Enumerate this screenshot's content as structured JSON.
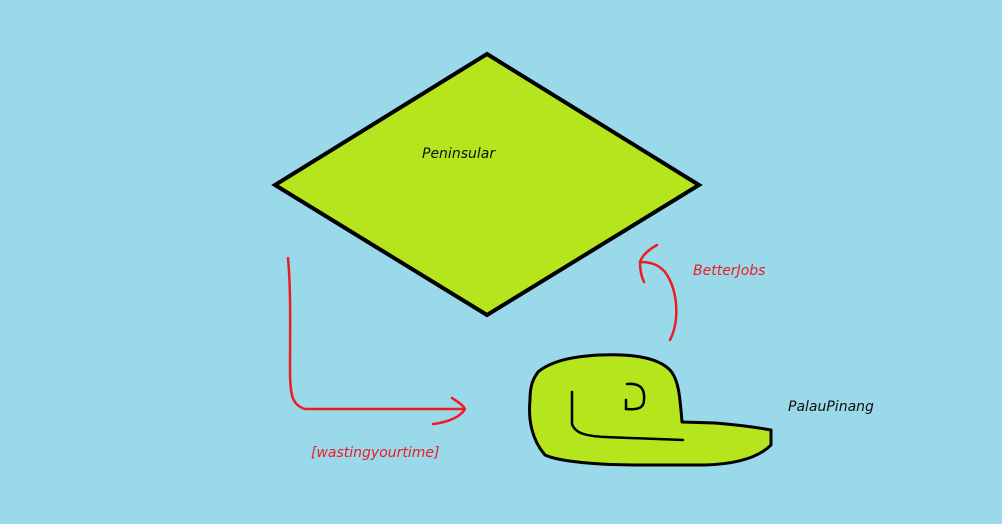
{
  "diagram": {
    "regions": {
      "peninsular": {
        "label": "Peninsular"
      },
      "pulau_pinang": {
        "label": "PalauPinang"
      }
    },
    "flows": {
      "to_peninsular": {
        "label": "BetterJobs"
      },
      "to_island": {
        "label": "[wastingyourtime]"
      }
    }
  },
  "colors": {
    "background": "#99d9ea",
    "land": "#b5e61d",
    "outline": "#000000",
    "arrow": "#ed1c24"
  }
}
